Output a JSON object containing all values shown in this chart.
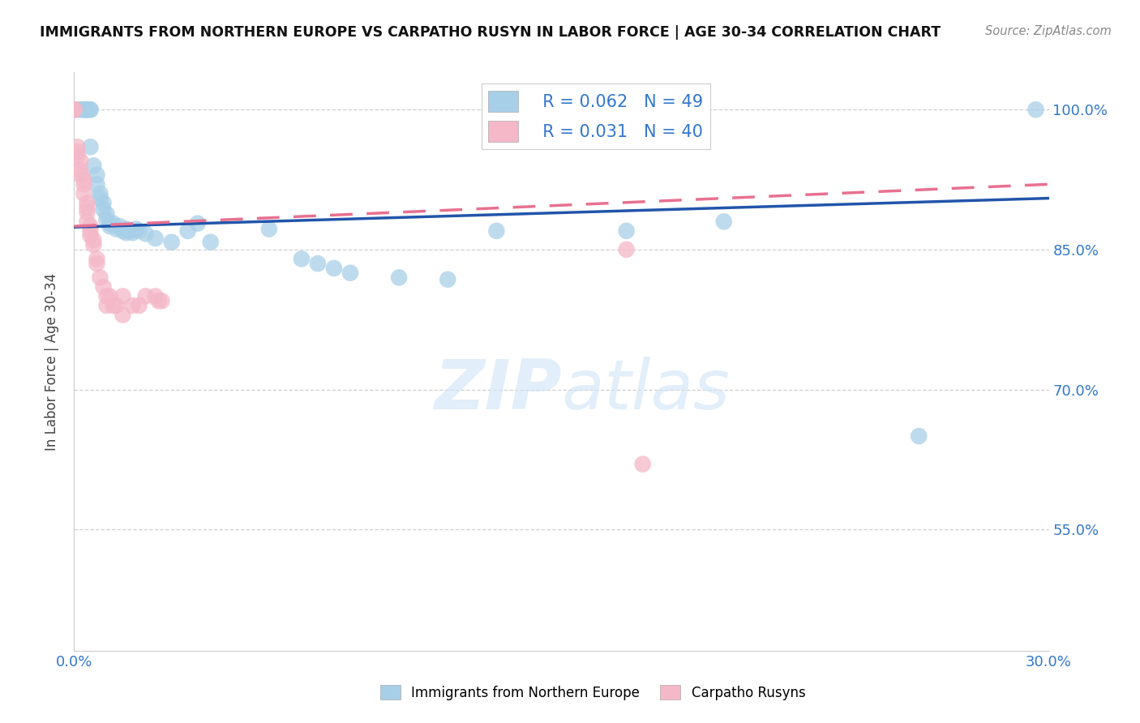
{
  "title": "IMMIGRANTS FROM NORTHERN EUROPE VS CARPATHO RUSYN IN LABOR FORCE | AGE 30-34 CORRELATION CHART",
  "source": "Source: ZipAtlas.com",
  "ylabel": "In Labor Force | Age 30-34",
  "legend_label_blue": "Immigrants from Northern Europe",
  "legend_label_pink": "Carpatho Rusyns",
  "R_blue": 0.062,
  "N_blue": 49,
  "R_pink": 0.031,
  "N_pink": 40,
  "xmin": 0.0,
  "xmax": 0.3,
  "ymin": 0.42,
  "ymax": 1.04,
  "yticks": [
    0.55,
    0.7,
    0.85,
    1.0
  ],
  "ytick_labels": [
    "55.0%",
    "70.0%",
    "85.0%",
    "100.0%"
  ],
  "watermark": "ZIPatlas",
  "blue_color": "#a8cfe8",
  "pink_color": "#f4b8c8",
  "blue_line_color": "#2255aa",
  "pink_line_color": "#e87090",
  "blue_scatter": [
    [
      0.001,
      1.0
    ],
    [
      0.002,
      1.0
    ],
    [
      0.003,
      1.0
    ],
    [
      0.003,
      1.0
    ],
    [
      0.004,
      1.0
    ],
    [
      0.004,
      1.0
    ],
    [
      0.004,
      1.0
    ],
    [
      0.005,
      1.0
    ],
    [
      0.005,
      1.0
    ],
    [
      0.005,
      0.96
    ],
    [
      0.006,
      0.94
    ],
    [
      0.007,
      0.93
    ],
    [
      0.007,
      0.92
    ],
    [
      0.008,
      0.91
    ],
    [
      0.008,
      0.905
    ],
    [
      0.009,
      0.9
    ],
    [
      0.009,
      0.893
    ],
    [
      0.01,
      0.888
    ],
    [
      0.01,
      0.882
    ],
    [
      0.011,
      0.878
    ],
    [
      0.011,
      0.875
    ],
    [
      0.012,
      0.878
    ],
    [
      0.013,
      0.872
    ],
    [
      0.014,
      0.875
    ],
    [
      0.015,
      0.87
    ],
    [
      0.016,
      0.868
    ],
    [
      0.016,
      0.872
    ],
    [
      0.017,
      0.87
    ],
    [
      0.018,
      0.868
    ],
    [
      0.019,
      0.872
    ],
    [
      0.02,
      0.87
    ],
    [
      0.022,
      0.867
    ],
    [
      0.025,
      0.862
    ],
    [
      0.03,
      0.858
    ],
    [
      0.035,
      0.87
    ],
    [
      0.038,
      0.878
    ],
    [
      0.042,
      0.858
    ],
    [
      0.06,
      0.872
    ],
    [
      0.07,
      0.84
    ],
    [
      0.075,
      0.835
    ],
    [
      0.08,
      0.83
    ],
    [
      0.085,
      0.825
    ],
    [
      0.1,
      0.82
    ],
    [
      0.115,
      0.818
    ],
    [
      0.13,
      0.87
    ],
    [
      0.17,
      0.87
    ],
    [
      0.2,
      0.88
    ],
    [
      0.26,
      0.65
    ],
    [
      0.296,
      1.0
    ]
  ],
  "pink_scatter": [
    [
      0.0,
      1.0
    ],
    [
      0.0,
      1.0
    ],
    [
      0.0,
      1.0
    ],
    [
      0.001,
      0.96
    ],
    [
      0.001,
      0.955
    ],
    [
      0.001,
      0.95
    ],
    [
      0.002,
      0.945
    ],
    [
      0.002,
      0.935
    ],
    [
      0.002,
      0.93
    ],
    [
      0.003,
      0.925
    ],
    [
      0.003,
      0.92
    ],
    [
      0.003,
      0.91
    ],
    [
      0.004,
      0.9
    ],
    [
      0.004,
      0.895
    ],
    [
      0.004,
      0.89
    ],
    [
      0.004,
      0.88
    ],
    [
      0.005,
      0.875
    ],
    [
      0.005,
      0.87
    ],
    [
      0.005,
      0.865
    ],
    [
      0.006,
      0.86
    ],
    [
      0.006,
      0.855
    ],
    [
      0.007,
      0.84
    ],
    [
      0.007,
      0.835
    ],
    [
      0.008,
      0.82
    ],
    [
      0.009,
      0.81
    ],
    [
      0.01,
      0.8
    ],
    [
      0.01,
      0.79
    ],
    [
      0.011,
      0.8
    ],
    [
      0.012,
      0.79
    ],
    [
      0.013,
      0.79
    ],
    [
      0.015,
      0.78
    ],
    [
      0.015,
      0.8
    ],
    [
      0.018,
      0.79
    ],
    [
      0.02,
      0.79
    ],
    [
      0.022,
      0.8
    ],
    [
      0.025,
      0.8
    ],
    [
      0.026,
      0.795
    ],
    [
      0.027,
      0.795
    ],
    [
      0.17,
      0.85
    ],
    [
      0.175,
      0.62
    ]
  ]
}
